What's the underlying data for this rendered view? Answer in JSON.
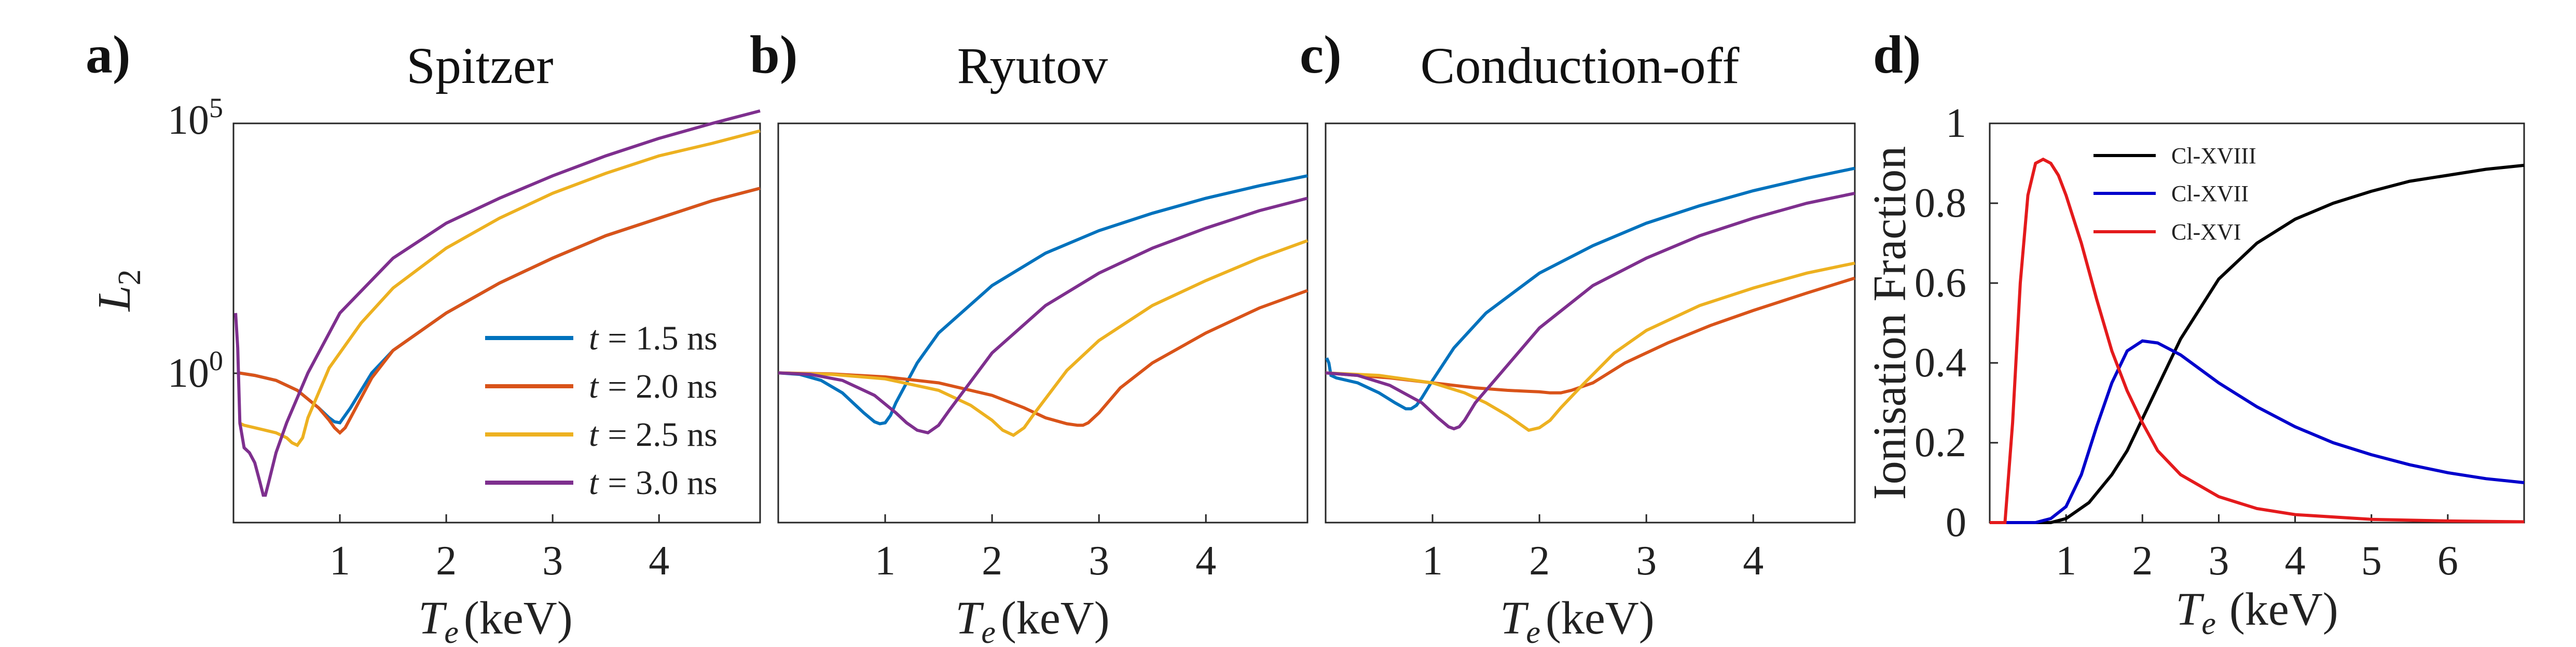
{
  "chart_data": [
    {
      "type": "line",
      "panel_label": "a)",
      "title": "Spitzer",
      "xlabel": "T_e (keV)",
      "xlabel_main": "T",
      "xlabel_sub": "e",
      "xlabel_unit": "(keV)",
      "ylabel": "L_2",
      "ylabel_main": "L",
      "ylabel_sub": "2",
      "yscale": "log",
      "xlim": [
        0.0,
        4.95
      ],
      "ylim_log10": [
        -3,
        5
      ],
      "xticks": [
        1,
        2,
        3,
        4
      ],
      "yticks": [
        {
          "base": "10",
          "exp": "5",
          "value_log10": 5
        },
        {
          "base": "10",
          "exp": "0",
          "value_log10": 0
        }
      ],
      "legend": {
        "placement": "lower-right",
        "entries": [
          "t = 1.5 ns",
          "t = 2.0 ns",
          "t = 2.5 ns",
          "t = 3.0 ns"
        ],
        "entries_var": [
          "t",
          "t",
          "t",
          "t"
        ],
        "entries_value": [
          "= 1.5 ns",
          "= 2.0 ns",
          "= 2.5 ns",
          "= 3.0 ns"
        ]
      },
      "series": [
        {
          "name": "t = 1.5 ns",
          "color": "#0072BD",
          "x": [
            0.05,
            0.2,
            0.4,
            0.6,
            0.8,
            0.9,
            0.95,
            1.0,
            1.1,
            1.3,
            1.5,
            2.0,
            2.5,
            3.0,
            3.5,
            4.0,
            4.5,
            4.95
          ],
          "y_log10": [
            0.0,
            -0.05,
            -0.15,
            -0.35,
            -0.7,
            -0.9,
            -0.98,
            -1.0,
            -0.7,
            0.0,
            0.45,
            1.2,
            1.8,
            2.3,
            2.75,
            3.1,
            3.45,
            3.7
          ]
        },
        {
          "name": "t = 2.0 ns",
          "color": "#D95319",
          "x": [
            0.05,
            0.2,
            0.4,
            0.6,
            0.8,
            0.9,
            0.95,
            1.0,
            1.05,
            1.1,
            1.3,
            1.5,
            2.0,
            2.5,
            3.0,
            3.5,
            4.0,
            4.5,
            4.95
          ],
          "y_log10": [
            0.0,
            -0.05,
            -0.15,
            -0.35,
            -0.7,
            -0.95,
            -1.1,
            -1.2,
            -1.1,
            -0.9,
            -0.1,
            0.45,
            1.2,
            1.8,
            2.3,
            2.75,
            3.1,
            3.45,
            3.7
          ]
        },
        {
          "name": "t = 2.5 ns",
          "color": "#EDB120",
          "x": [
            0.05,
            0.1,
            0.2,
            0.3,
            0.4,
            0.5,
            0.55,
            0.6,
            0.65,
            0.7,
            0.9,
            1.2,
            1.5,
            2.0,
            2.5,
            3.0,
            3.5,
            4.0,
            4.5,
            4.95
          ],
          "y_log10": [
            -1.0,
            -1.05,
            -1.1,
            -1.15,
            -1.2,
            -1.3,
            -1.4,
            -1.45,
            -1.3,
            -0.9,
            0.1,
            1.0,
            1.7,
            2.5,
            3.1,
            3.6,
            4.0,
            4.35,
            4.6,
            4.85
          ]
        },
        {
          "name": "t = 3.0 ns",
          "color": "#7E2F8E",
          "x": [
            0.02,
            0.04,
            0.06,
            0.1,
            0.15,
            0.2,
            0.25,
            0.28,
            0.3,
            0.33,
            0.4,
            0.5,
            0.7,
            1.0,
            1.5,
            2.0,
            2.5,
            3.0,
            3.5,
            4.0,
            4.5,
            4.95
          ],
          "y_log10": [
            1.2,
            0.5,
            -1.0,
            -1.5,
            -1.6,
            -1.8,
            -2.2,
            -2.45,
            -2.45,
            -2.2,
            -1.6,
            -1.0,
            0.0,
            1.2,
            2.3,
            3.0,
            3.5,
            3.95,
            4.35,
            4.7,
            5.0,
            5.25
          ]
        }
      ]
    },
    {
      "type": "line",
      "panel_label": "b)",
      "title": "Ryutov",
      "xlabel": "T_e (keV)",
      "xlabel_main": "T",
      "xlabel_sub": "e",
      "xlabel_unit": "(keV)",
      "yscale": "log",
      "xlim": [
        0.0,
        4.95
      ],
      "ylim_log10": [
        -3,
        5
      ],
      "xticks": [
        1,
        2,
        3,
        4
      ],
      "series": [
        {
          "name": "t = 1.5 ns",
          "color": "#0072BD",
          "x": [
            0.0,
            0.2,
            0.4,
            0.6,
            0.8,
            0.9,
            0.95,
            1.0,
            1.05,
            1.1,
            1.3,
            1.5,
            2.0,
            2.5,
            3.0,
            3.5,
            4.0,
            4.5,
            4.95
          ],
          "y_log10": [
            0.0,
            -0.03,
            -0.15,
            -0.4,
            -0.8,
            -0.98,
            -1.02,
            -1.0,
            -0.85,
            -0.6,
            0.2,
            0.8,
            1.75,
            2.4,
            2.85,
            3.2,
            3.5,
            3.75,
            3.95
          ]
        },
        {
          "name": "t = 2.0 ns",
          "color": "#D95319",
          "x": [
            0.0,
            0.5,
            1.0,
            1.5,
            2.0,
            2.3,
            2.5,
            2.7,
            2.8,
            2.85,
            2.9,
            3.0,
            3.2,
            3.5,
            4.0,
            4.5,
            4.95
          ],
          "y_log10": [
            0.0,
            -0.02,
            -0.08,
            -0.2,
            -0.45,
            -0.7,
            -0.9,
            -1.02,
            -1.05,
            -1.05,
            -1.0,
            -0.8,
            -0.3,
            0.2,
            0.8,
            1.3,
            1.65
          ]
        },
        {
          "name": "t = 2.5 ns",
          "color": "#EDB120",
          "x": [
            0.0,
            0.5,
            1.0,
            1.5,
            1.8,
            2.0,
            2.1,
            2.2,
            2.3,
            2.4,
            2.7,
            3.0,
            3.5,
            4.0,
            4.5,
            4.95
          ],
          "y_log10": [
            0.0,
            -0.03,
            -0.12,
            -0.35,
            -0.65,
            -0.95,
            -1.15,
            -1.25,
            -1.1,
            -0.8,
            0.05,
            0.65,
            1.35,
            1.85,
            2.3,
            2.65
          ]
        },
        {
          "name": "t = 3.0 ns",
          "color": "#7E2F8E",
          "x": [
            0.0,
            0.3,
            0.6,
            0.9,
            1.1,
            1.2,
            1.3,
            1.4,
            1.5,
            1.6,
            2.0,
            2.5,
            3.0,
            3.5,
            4.0,
            4.5,
            4.95
          ],
          "y_log10": [
            0.0,
            -0.03,
            -0.15,
            -0.45,
            -0.8,
            -1.0,
            -1.15,
            -1.2,
            -1.05,
            -0.75,
            0.4,
            1.35,
            2.0,
            2.5,
            2.9,
            3.25,
            3.5
          ]
        }
      ]
    },
    {
      "type": "line",
      "panel_label": "c)",
      "title": "Conduction-off",
      "xlabel": "T_e (keV)",
      "xlabel_main": "T",
      "xlabel_sub": "e",
      "xlabel_unit": "(keV)",
      "yscale": "log",
      "xlim": [
        0.0,
        4.95
      ],
      "ylim_log10": [
        -3,
        5
      ],
      "xticks": [
        1,
        2,
        3,
        4
      ],
      "series": [
        {
          "name": "t = 1.5 ns",
          "color": "#0072BD",
          "x": [
            0.01,
            0.03,
            0.05,
            0.1,
            0.3,
            0.5,
            0.65,
            0.75,
            0.8,
            0.85,
            0.9,
            1.0,
            1.2,
            1.5,
            2.0,
            2.5,
            3.0,
            3.5,
            4.0,
            4.5,
            4.95
          ],
          "y_log10": [
            0.3,
            0.2,
            -0.05,
            -0.1,
            -0.2,
            -0.4,
            -0.6,
            -0.72,
            -0.72,
            -0.65,
            -0.5,
            -0.15,
            0.5,
            1.2,
            2.0,
            2.55,
            3.0,
            3.35,
            3.65,
            3.9,
            4.1
          ]
        },
        {
          "name": "t = 2.0 ns",
          "color": "#D95319",
          "x": [
            0.0,
            0.3,
            0.6,
            1.0,
            1.4,
            1.7,
            1.9,
            2.0,
            2.1,
            2.2,
            2.3,
            2.5,
            2.8,
            3.2,
            3.6,
            4.0,
            4.5,
            4.95
          ],
          "y_log10": [
            0.0,
            -0.05,
            -0.1,
            -0.2,
            -0.3,
            -0.35,
            -0.37,
            -0.38,
            -0.4,
            -0.4,
            -0.35,
            -0.2,
            0.2,
            0.6,
            0.95,
            1.25,
            1.6,
            1.9
          ]
        },
        {
          "name": "t = 2.5 ns",
          "color": "#EDB120",
          "x": [
            0.0,
            0.5,
            1.0,
            1.3,
            1.5,
            1.7,
            1.8,
            1.9,
            2.0,
            2.1,
            2.2,
            2.4,
            2.7,
            3.0,
            3.5,
            4.0,
            4.5,
            4.95
          ],
          "y_log10": [
            0.0,
            -0.05,
            -0.2,
            -0.4,
            -0.6,
            -0.85,
            -1.0,
            -1.15,
            -1.1,
            -0.95,
            -0.7,
            -0.25,
            0.4,
            0.85,
            1.35,
            1.7,
            2.0,
            2.2
          ]
        },
        {
          "name": "t = 3.0 ns",
          "color": "#7E2F8E",
          "x": [
            0.0,
            0.3,
            0.6,
            0.9,
            1.05,
            1.15,
            1.2,
            1.25,
            1.3,
            1.4,
            1.6,
            2.0,
            2.5,
            3.0,
            3.5,
            4.0,
            4.5,
            4.95
          ],
          "y_log10": [
            0.0,
            -0.05,
            -0.25,
            -0.6,
            -0.9,
            -1.08,
            -1.12,
            -1.08,
            -0.95,
            -0.6,
            -0.1,
            0.9,
            1.75,
            2.3,
            2.75,
            3.1,
            3.4,
            3.6
          ]
        }
      ]
    },
    {
      "type": "line",
      "panel_label": "d)",
      "title": "",
      "xlabel": "T_e (keV)",
      "xlabel_main": "T",
      "xlabel_sub": "e",
      "xlabel_unit": "(keV)",
      "ylabel": "Ionisation Fraction",
      "xlim": [
        0.0,
        7.0
      ],
      "ylim": [
        0,
        1
      ],
      "xticks": [
        1,
        2,
        3,
        4,
        5,
        6
      ],
      "yticks": [
        0,
        0.2,
        0.4,
        0.6,
        0.8,
        1
      ],
      "ytick_labels": [
        "0",
        "0.2",
        "0.4",
        "0.6",
        "0.8",
        "1"
      ],
      "legend": {
        "placement": "top-left",
        "entries": [
          "Cl-XVIII",
          "Cl-XVII",
          "Cl-XVI"
        ]
      },
      "series": [
        {
          "name": "Cl-XVIII",
          "color": "#000000",
          "x": [
            0.0,
            0.8,
            1.0,
            1.3,
            1.6,
            1.8,
            2.0,
            2.2,
            2.5,
            3.0,
            3.5,
            4.0,
            4.5,
            5.0,
            5.5,
            6.0,
            6.5,
            7.0
          ],
          "y": [
            0.0,
            0.0,
            0.01,
            0.05,
            0.12,
            0.18,
            0.26,
            0.34,
            0.46,
            0.61,
            0.7,
            0.76,
            0.8,
            0.83,
            0.855,
            0.87,
            0.885,
            0.895
          ]
        },
        {
          "name": "Cl-XVII",
          "color": "#0000CC",
          "x": [
            0.0,
            0.6,
            0.8,
            1.0,
            1.2,
            1.4,
            1.6,
            1.8,
            2.0,
            2.2,
            2.5,
            3.0,
            3.5,
            4.0,
            4.5,
            5.0,
            5.5,
            6.0,
            6.5,
            7.0
          ],
          "y": [
            0.0,
            0.0,
            0.01,
            0.04,
            0.12,
            0.24,
            0.35,
            0.43,
            0.455,
            0.45,
            0.42,
            0.35,
            0.29,
            0.24,
            0.2,
            0.17,
            0.145,
            0.125,
            0.11,
            0.1
          ]
        },
        {
          "name": "Cl-XVI",
          "color": "#E41A1C",
          "x": [
            0.0,
            0.2,
            0.3,
            0.4,
            0.5,
            0.6,
            0.7,
            0.8,
            0.9,
            1.0,
            1.2,
            1.4,
            1.6,
            1.8,
            2.0,
            2.2,
            2.5,
            3.0,
            3.5,
            4.0,
            5.0,
            6.0,
            7.0
          ],
          "y": [
            0.0,
            0.0,
            0.25,
            0.6,
            0.82,
            0.9,
            0.91,
            0.9,
            0.87,
            0.82,
            0.7,
            0.56,
            0.43,
            0.33,
            0.25,
            0.18,
            0.12,
            0.065,
            0.035,
            0.02,
            0.008,
            0.004,
            0.002
          ]
        }
      ]
    }
  ]
}
